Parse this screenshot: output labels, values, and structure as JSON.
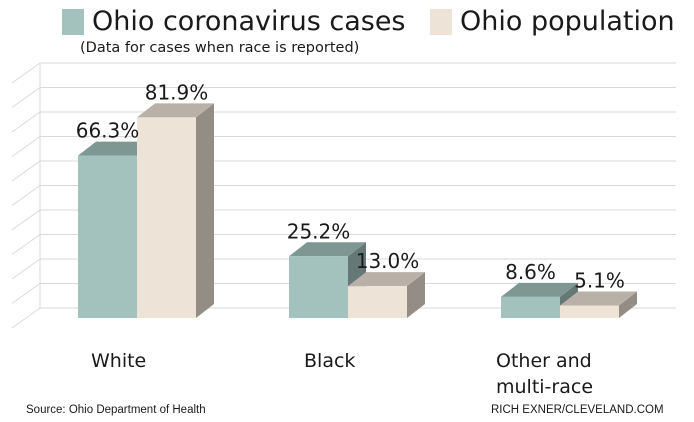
{
  "legend": {
    "cases_label": "Ohio coronavirus cases",
    "population_label": "Ohio population"
  },
  "subtitle": "(Data for cases when race is reported)",
  "footer": {
    "source": "Source: Ohio Department of Health",
    "credit": "RICH EXNER/CLEVELAND.COM"
  },
  "colors": {
    "cases": "#a3c1bd",
    "population": "#ede3d6",
    "background": "#ffffff",
    "gridline": "#d9d9d9"
  },
  "chart_data": {
    "type": "bar",
    "categories": [
      "White",
      "Black",
      "Other and multi-race"
    ],
    "category_display": [
      [
        "White"
      ],
      [
        "Black"
      ],
      [
        "Other and",
        "multi-race"
      ]
    ],
    "series": [
      {
        "name": "Ohio coronavirus cases",
        "values": [
          66.3,
          25.2,
          8.6
        ],
        "labels": [
          "66.3%",
          "25.2%",
          "8.6%"
        ]
      },
      {
        "name": "Ohio population",
        "values": [
          81.9,
          13.0,
          5.1
        ],
        "labels": [
          "81.9%",
          "13.0%",
          "5.1%"
        ]
      }
    ],
    "ylim": [
      0,
      100
    ],
    "grid": true,
    "style": "3d-bar",
    "legend_position": "top"
  }
}
